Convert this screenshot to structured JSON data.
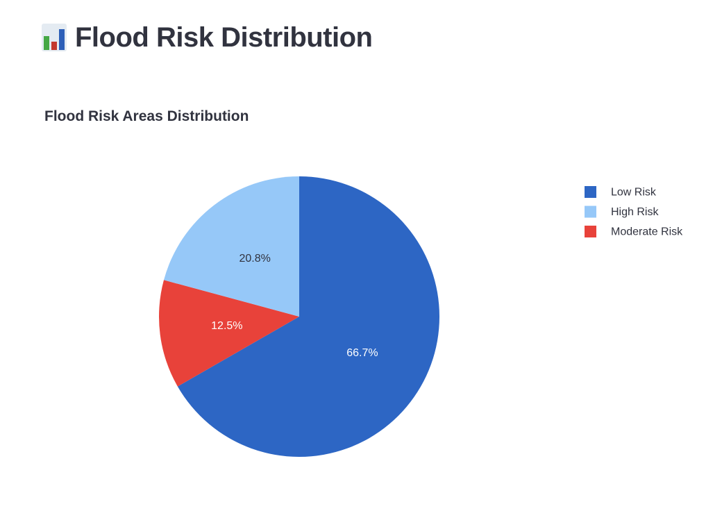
{
  "page": {
    "title": "Flood Risk Distribution",
    "title_icon": "bar-chart-emoji-icon"
  },
  "chart_data": {
    "type": "pie",
    "title": "Flood Risk Areas Distribution",
    "slices": [
      {
        "name": "Low Risk",
        "percent": 66.7,
        "label": "66.7%",
        "color": "#2d66c4",
        "label_color": "#ffffff"
      },
      {
        "name": "Moderate Risk",
        "percent": 12.5,
        "label": "12.5%",
        "color": "#e8423a",
        "label_color": "#ffffff"
      },
      {
        "name": "High Risk",
        "percent": 20.8,
        "label": "20.8%",
        "color": "#96c8f8",
        "label_color": "#31333f"
      }
    ],
    "legend": {
      "placement": "top-right",
      "entries": [
        {
          "name": "Low Risk",
          "color": "#2d66c4"
        },
        {
          "name": "High Risk",
          "color": "#96c8f8"
        },
        {
          "name": "Moderate Risk",
          "color": "#e8423a"
        }
      ]
    }
  }
}
